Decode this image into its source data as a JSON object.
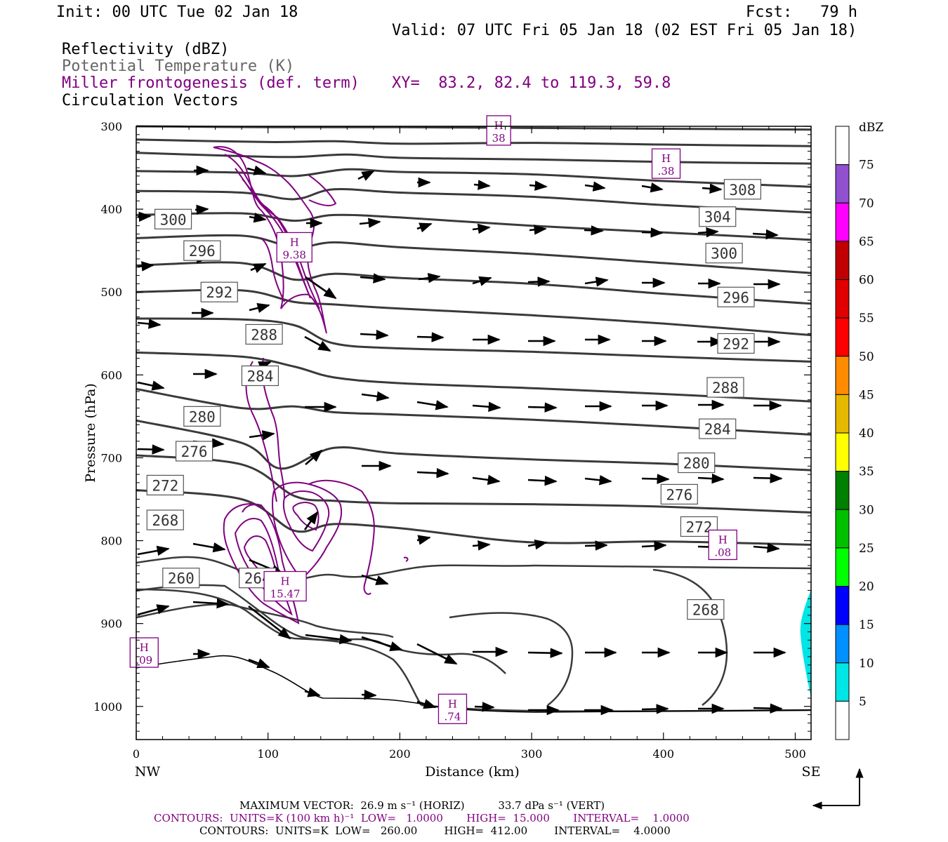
{
  "header": {
    "init": "Init: 00 UTC Tue 02 Jan 18",
    "fcst": "Fcst:   79 h",
    "valid": "Valid: 07 UTC Fri 05 Jan 18 (02 EST Fri 05 Jan 18)",
    "field1": "Reflectivity (dBZ)",
    "field2": "Potential Temperature (K)",
    "field3": "Miller frontogenesis (def. term)",
    "xy": "XY=  83.2, 82.4 to 119.3, 59.8",
    "field4": "Circulation Vectors"
  },
  "footer": {
    "max_vector": "MAXIMUM VECTOR:  26.9 m s⁻¹ (HORIZ)          33.7 dPa s⁻¹ (VERT)",
    "contours_fronto": "CONTOURS:  UNITS=K (100 km h)⁻¹  LOW=   1.0000       HIGH=  15.000       INTERVAL=    1.0000",
    "contours_theta": "CONTOURS:  UNITS=K  LOW=   260.00        HIGH=  412.00        INTERVAL=    4.0000"
  },
  "colors": {
    "theta": "#3a3a3a",
    "fronto": "#800080",
    "vector": "#000000",
    "refl_5": "#00e5e5"
  },
  "chart_data": {
    "type": "cross-section",
    "xlabel": "Distance (km)",
    "ylabel": "Pressure (hPa)",
    "x_end_labels": [
      "NW",
      "SE"
    ],
    "xlim": [
      0,
      512
    ],
    "ylim": [
      1040,
      300
    ],
    "x_ticks": [
      0,
      100,
      200,
      300,
      400,
      500
    ],
    "y_ticks": [
      300,
      400,
      500,
      600,
      700,
      800,
      900,
      1000
    ],
    "legend": {
      "title": "dBZ",
      "levels": [
        75,
        70,
        65,
        60,
        55,
        50,
        45,
        40,
        35,
        30,
        25,
        20,
        15,
        10,
        5
      ],
      "colors": [
        "#9050d0",
        "#ff00ff",
        "#c00000",
        "#e00000",
        "#ff0000",
        "#ff8c00",
        "#e6b800",
        "#ffff00",
        "#008000",
        "#00c000",
        "#00ff00",
        "#0000ff",
        "#0090ff",
        "#00e5e5",
        "#ffffff"
      ]
    },
    "theta_contour_labels": [
      {
        "value": "308",
        "x": 460,
        "p": 376
      },
      {
        "value": "304",
        "x": 441,
        "p": 409
      },
      {
        "value": "300",
        "x": 28,
        "p": 412
      },
      {
        "value": "300",
        "x": 446,
        "p": 453
      },
      {
        "value": "296",
        "x": 50,
        "p": 450
      },
      {
        "value": "296",
        "x": 455,
        "p": 506
      },
      {
        "value": "292",
        "x": 63,
        "p": 500
      },
      {
        "value": "292",
        "x": 455,
        "p": 562
      },
      {
        "value": "288",
        "x": 97,
        "p": 551
      },
      {
        "value": "288",
        "x": 447,
        "p": 615
      },
      {
        "value": "284",
        "x": 94,
        "p": 601
      },
      {
        "value": "284",
        "x": 441,
        "p": 665
      },
      {
        "value": "280",
        "x": 50,
        "p": 650
      },
      {
        "value": "280",
        "x": 425,
        "p": 706
      },
      {
        "value": "276",
        "x": 44,
        "p": 692
      },
      {
        "value": "276",
        "x": 412,
        "p": 744
      },
      {
        "value": "272",
        "x": 22,
        "p": 733
      },
      {
        "value": "272",
        "x": 427,
        "p": 783
      },
      {
        "value": "268",
        "x": 22,
        "p": 775
      },
      {
        "value": "268",
        "x": 432,
        "p": 883
      },
      {
        "value": "264",
        "x": 92,
        "p": 845
      },
      {
        "value": "260",
        "x": 34,
        "p": 845
      }
    ],
    "theta_lines": [
      {
        "x": [
          0,
          100,
          200,
          300,
          400,
          512
        ],
        "p": [
          300,
          301,
          301,
          302,
          303,
          304
        ]
      },
      {
        "x": [
          0,
          100,
          150,
          200,
          300,
          400,
          512
        ],
        "p": [
          316,
          319,
          318,
          321,
          320,
          322,
          324
        ]
      },
      {
        "x": [
          0,
          80,
          120,
          160,
          200,
          300,
          400,
          512
        ],
        "p": [
          332,
          336,
          337,
          334,
          338,
          340,
          343,
          345
        ]
      },
      {
        "x": [
          0,
          80,
          120,
          160,
          200,
          300,
          400,
          512
        ],
        "p": [
          354,
          356,
          360,
          352,
          355,
          358,
          366,
          373
        ]
      },
      {
        "x": [
          0,
          80,
          120,
          150,
          200,
          300,
          400,
          512
        ],
        "p": [
          378,
          380,
          388,
          376,
          380,
          385,
          395,
          404
        ]
      },
      {
        "x": [
          0,
          80,
          120,
          150,
          200,
          300,
          400,
          512
        ],
        "p": [
          407,
          405,
          414,
          407,
          410,
          420,
          428,
          437
        ]
      },
      {
        "x": [
          0,
          80,
          120,
          150,
          200,
          300,
          400,
          512
        ],
        "p": [
          435,
          432,
          446,
          440,
          446,
          454,
          465,
          477
        ]
      },
      {
        "x": [
          0,
          80,
          120,
          150,
          200,
          300,
          400,
          512
        ],
        "p": [
          468,
          465,
          485,
          478,
          483,
          490,
          502,
          514
        ]
      },
      {
        "x": [
          0,
          80,
          120,
          150,
          200,
          300,
          400,
          512
        ],
        "p": [
          500,
          498,
          512,
          515,
          520,
          528,
          538,
          552
        ]
      },
      {
        "x": [
          0,
          80,
          120,
          150,
          200,
          300,
          400,
          512
        ],
        "p": [
          532,
          533,
          540,
          562,
          568,
          572,
          578,
          584
        ]
      },
      {
        "x": [
          0,
          80,
          120,
          150,
          200,
          300,
          400,
          512
        ],
        "p": [
          573,
          578,
          590,
          603,
          610,
          616,
          623,
          632
        ]
      },
      {
        "x": [
          0,
          80,
          120,
          150,
          200,
          300,
          400,
          512
        ],
        "p": [
          617,
          640,
          638,
          645,
          648,
          654,
          662,
          672
        ]
      },
      {
        "x": [
          0,
          80,
          110,
          150,
          200,
          300,
          400,
          512
        ],
        "p": [
          655,
          682,
          713,
          688,
          695,
          702,
          707,
          715
        ]
      },
      {
        "x": [
          0,
          80,
          120,
          150,
          200,
          300,
          400,
          512
        ],
        "p": [
          697,
          708,
          746,
          752,
          755,
          756,
          759,
          766
        ]
      },
      {
        "x": [
          0,
          80,
          120,
          150,
          200,
          300,
          400,
          512
        ],
        "p": [
          739,
          750,
          788,
          780,
          785,
          802,
          801,
          805
        ]
      }
    ],
    "fronto_maxima": [
      {
        "label": "H",
        "value": "38",
        "x": 275,
        "p": 305
      },
      {
        "label": "H",
        "value": ".38",
        "x": 402,
        "p": 345
      },
      {
        "label": "H",
        "value": "9.38",
        "x": 120,
        "p": 446
      },
      {
        "label": "H",
        "value": "15.47",
        "x": 113,
        "p": 855
      },
      {
        "label": "H",
        "value": ".08",
        "x": 445,
        "p": 805
      },
      {
        "label": "H",
        "value": ".09",
        "x": 6,
        "p": 935
      },
      {
        "label": "H",
        "value": ".74",
        "x": 240,
        "p": 1003
      }
    ],
    "grid": false
  }
}
